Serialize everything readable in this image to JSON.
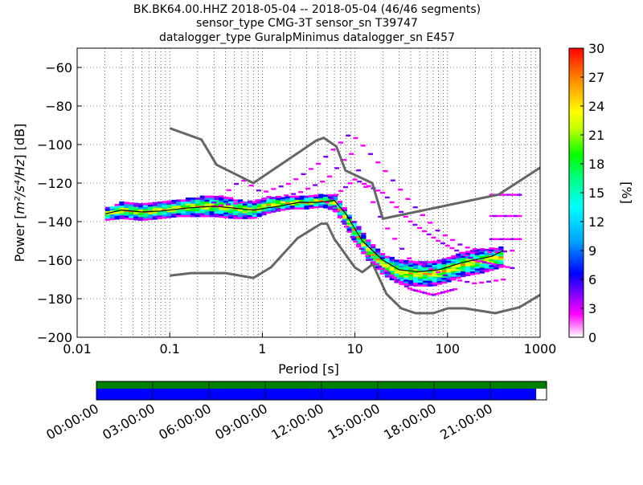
{
  "chart_data": {
    "type": "heatmap",
    "title_lines": [
      "BK.BK64.00.HHZ   2018-05-04 -- 2018-05-04  (46/46 segments)",
      "sensor_type CMG-3T sensor_sn T39747",
      "datalogger_type GuralpMinimus datalogger_sn E457"
    ],
    "xlabel": "Period [s]",
    "ylabel_prefix": "Power [",
    "ylabel_units": "m²/s⁴/Hz",
    "ylabel_suffix": "] [dB]",
    "xscale": "log",
    "xlim": [
      0.01,
      1000
    ],
    "ylim": [
      -200,
      -50
    ],
    "x_ticks": [
      {
        "value": 0.01,
        "label": "0.01"
      },
      {
        "value": 0.1,
        "label": "0.1"
      },
      {
        "value": 1,
        "label": "1"
      },
      {
        "value": 10,
        "label": "10"
      },
      {
        "value": 100,
        "label": "100"
      },
      {
        "value": 1000,
        "label": "1000"
      }
    ],
    "y_ticks": [
      {
        "value": -60,
        "label": "−60"
      },
      {
        "value": -80,
        "label": "−80"
      },
      {
        "value": -100,
        "label": "−100"
      },
      {
        "value": -120,
        "label": "−120"
      },
      {
        "value": -140,
        "label": "−140"
      },
      {
        "value": -160,
        "label": "−160"
      },
      {
        "value": -180,
        "label": "−180"
      },
      {
        "value": -200,
        "label": "−200"
      }
    ],
    "grid": true,
    "colorbar": {
      "label": "[%]",
      "range": [
        0,
        30
      ],
      "ticks": [
        "0",
        "3",
        "6",
        "9",
        "12",
        "15",
        "18",
        "21",
        "24",
        "27",
        "30"
      ],
      "colormap": [
        "#ffffff",
        "#ff00ff",
        "#8000ff",
        "#0000ff",
        "#00a0ff",
        "#00ffff",
        "#00ff80",
        "#00ff00",
        "#c0ff00",
        "#ffff00",
        "#ff8000",
        "#ff0000"
      ]
    },
    "nlnm": [
      [
        0.1,
        -168
      ],
      [
        0.17,
        -166.7
      ],
      [
        0.4,
        -166.7
      ],
      [
        0.8,
        -169.2
      ],
      [
        1.24,
        -163.7
      ],
      [
        2.4,
        -148.6
      ],
      [
        4.3,
        -141.1
      ],
      [
        5,
        -141.1
      ],
      [
        6,
        -149
      ],
      [
        10,
        -163.8
      ],
      [
        12,
        -166.2
      ],
      [
        15.6,
        -162.1
      ],
      [
        21.9,
        -177.5
      ],
      [
        31.6,
        -185
      ],
      [
        45,
        -187.5
      ],
      [
        70,
        -187.5
      ],
      [
        101,
        -185
      ],
      [
        154,
        -185
      ],
      [
        328,
        -187.5
      ],
      [
        600,
        -184.4
      ],
      [
        1000,
        -178
      ]
    ],
    "nhnm": [
      [
        0.1,
        -91.5
      ],
      [
        0.22,
        -97.4
      ],
      [
        0.32,
        -110.5
      ],
      [
        0.8,
        -120
      ],
      [
        3.8,
        -98
      ],
      [
        4.6,
        -96.5
      ],
      [
        6.3,
        -101
      ],
      [
        7.9,
        -113.5
      ],
      [
        15.4,
        -120
      ],
      [
        20,
        -138.5
      ],
      [
        354.8,
        -126
      ],
      [
        1000,
        -112
      ]
    ],
    "mode": [
      [
        0.02,
        -136
      ],
      [
        0.03,
        -134
      ],
      [
        0.05,
        -135
      ],
      [
        0.08,
        -134.5
      ],
      [
        0.15,
        -133
      ],
      [
        0.3,
        -132
      ],
      [
        0.5,
        -133
      ],
      [
        0.8,
        -134
      ],
      [
        1.5,
        -132
      ],
      [
        2.5,
        -130
      ],
      [
        4,
        -130
      ],
      [
        6,
        -129
      ],
      [
        8,
        -136
      ],
      [
        12,
        -150
      ],
      [
        20,
        -160
      ],
      [
        30,
        -165
      ],
      [
        50,
        -166
      ],
      [
        80,
        -165
      ],
      [
        150,
        -161
      ],
      [
        300,
        -158
      ],
      [
        400,
        -155
      ]
    ],
    "percent_scale": "0–30 %",
    "series_bands": [
      {
        "x": [
          0.02,
          0.03,
          0.05,
          0.08,
          0.12,
          0.2,
          0.3,
          0.5,
          0.8,
          1.2,
          2,
          3,
          4.5,
          6,
          8,
          10,
          14,
          20,
          30,
          45,
          70,
          100,
          150,
          250,
          400
        ],
        "center": [
          -136,
          -134,
          -135,
          -134,
          -133,
          -132,
          -132,
          -133,
          -134,
          -131,
          -130,
          -130,
          -129,
          -130,
          -138,
          -145,
          -155,
          -162,
          -166,
          -167,
          -167,
          -165,
          -162,
          -160,
          -158
        ],
        "half_width": [
          2,
          3,
          3,
          3,
          3,
          4,
          4,
          4,
          3,
          3,
          2,
          2,
          2,
          3,
          3,
          4,
          4,
          4,
          5,
          5,
          5,
          5,
          5,
          5,
          4
        ]
      }
    ],
    "outlier_tracks": [
      [
        [
          0.3,
          -130
        ],
        [
          0.6,
          -118
        ],
        [
          1.0,
          -125
        ],
        [
          2,
          -120
        ],
        [
          4,
          -110
        ],
        [
          6,
          -102
        ],
        [
          9,
          -94
        ],
        [
          12,
          -100
        ],
        [
          20,
          -112
        ],
        [
          40,
          -130
        ],
        [
          80,
          -145
        ],
        [
          150,
          -153
        ],
        [
          300,
          -156
        ],
        [
          500,
          -155
        ]
      ],
      [
        [
          0.3,
          -132
        ],
        [
          1.2,
          -128
        ],
        [
          2.5,
          -125
        ],
        [
          5,
          -118
        ],
        [
          9,
          -104
        ],
        [
          14,
          -125
        ],
        [
          20,
          -140
        ],
        [
          30,
          -152
        ],
        [
          40,
          -160
        ],
        [
          70,
          -165
        ],
        [
          120,
          -170
        ],
        [
          200,
          -172
        ],
        [
          400,
          -170
        ]
      ],
      [
        [
          5,
          -130
        ],
        [
          10,
          -118
        ],
        [
          20,
          -125
        ],
        [
          40,
          -140
        ],
        [
          80,
          -150
        ],
        [
          200,
          -160
        ],
        [
          500,
          -164
        ]
      ],
      [
        [
          6,
          -132
        ],
        [
          10,
          -150
        ],
        [
          15,
          -160
        ],
        [
          25,
          -168
        ],
        [
          40,
          -175
        ],
        [
          70,
          -178
        ],
        [
          120,
          -175
        ]
      ],
      [
        [
          300,
          -126
        ],
        [
          600,
          -126
        ]
      ],
      [
        [
          300,
          -137
        ],
        [
          600,
          -137
        ]
      ],
      [
        [
          300,
          -149
        ],
        [
          600,
          -149
        ]
      ]
    ],
    "time_bar": {
      "ticks": [
        "00:00:00",
        "03:00:00",
        "06:00:00",
        "09:00:00",
        "12:00:00",
        "15:00:00",
        "18:00:00",
        "21:00:00"
      ],
      "top_color": "#008000",
      "bottom_color": "#0000ff",
      "coverage_fraction": 0.977
    }
  }
}
